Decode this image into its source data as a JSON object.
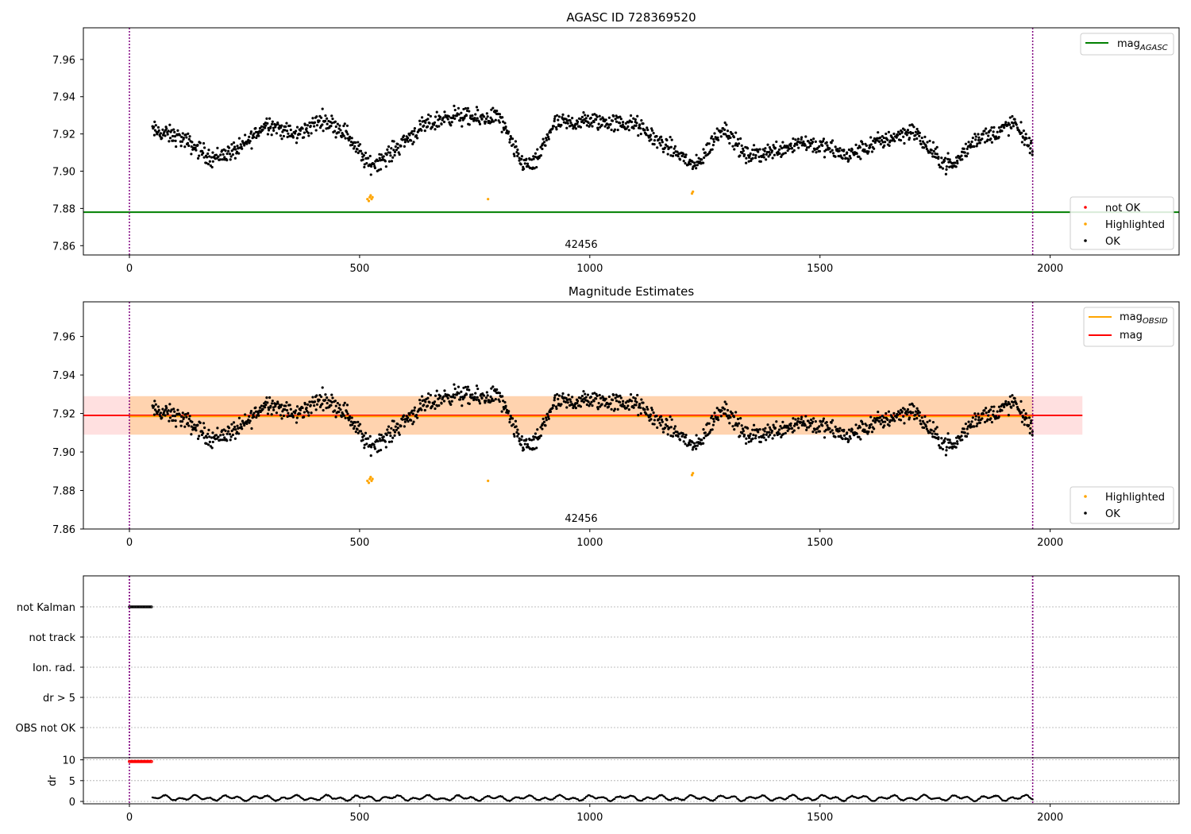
{
  "chart_data": [
    {
      "type": "scatter",
      "title": "AGASC ID 728369520",
      "xlim": [
        -100,
        2280
      ],
      "ylim": [
        7.855,
        7.977
      ],
      "xticks": [
        0,
        500,
        1000,
        1500,
        2000
      ],
      "yticks": [
        7.86,
        7.88,
        7.9,
        7.92,
        7.94,
        7.96
      ],
      "annotation": "42456",
      "vlines": [
        0,
        1962
      ],
      "hline": 7.878,
      "legend_lines": [
        {
          "label": "mag",
          "sub": "AGASC",
          "color": "#008000"
        }
      ],
      "legend_points": [
        {
          "label": "not OK",
          "color": "#ff0000"
        },
        {
          "label": "Highlighted",
          "color": "#ffa500"
        },
        {
          "label": "OK",
          "color": "#000000"
        }
      ],
      "series": [
        {
          "name": "OK",
          "color": "#000000",
          "x_start": 50,
          "x_end": 1962,
          "count": 1480,
          "baseline": [
            [
              50,
              7.922
            ],
            [
              110,
              7.918
            ],
            [
              180,
              7.907
            ],
            [
              240,
              7.912
            ],
            [
              300,
              7.926
            ],
            [
              360,
              7.919
            ],
            [
              420,
              7.928
            ],
            [
              470,
              7.921
            ],
            [
              520,
              7.903
            ],
            [
              560,
              7.908
            ],
            [
              600,
              7.917
            ],
            [
              640,
              7.924
            ],
            [
              700,
              7.93
            ],
            [
              760,
              7.928
            ],
            [
              800,
              7.93
            ],
            [
              850,
              7.905
            ],
            [
              880,
              7.903
            ],
            [
              920,
              7.925
            ],
            [
              1000,
              7.927
            ],
            [
              1100,
              7.925
            ],
            [
              1150,
              7.916
            ],
            [
              1200,
              7.908
            ],
            [
              1230,
              7.902
            ],
            [
              1290,
              7.924
            ],
            [
              1340,
              7.908
            ],
            [
              1400,
              7.911
            ],
            [
              1460,
              7.916
            ],
            [
              1520,
              7.912
            ],
            [
              1560,
              7.908
            ],
            [
              1620,
              7.915
            ],
            [
              1700,
              7.922
            ],
            [
              1760,
              7.906
            ],
            [
              1790,
              7.903
            ],
            [
              1840,
              7.918
            ],
            [
              1880,
              7.92
            ],
            [
              1920,
              7.926
            ],
            [
              1962,
              7.912
            ]
          ],
          "spread": 0.0045
        },
        {
          "name": "Highlighted",
          "color": "#ffa500",
          "points": [
            [
              517,
              7.885
            ],
            [
              520,
              7.884
            ],
            [
              522,
              7.886
            ],
            [
              524,
              7.887
            ],
            [
              526,
              7.885
            ],
            [
              528,
              7.886
            ],
            [
              779,
              7.885
            ],
            [
              1222,
              7.888
            ],
            [
              1224,
              7.889
            ]
          ]
        }
      ]
    },
    {
      "type": "scatter",
      "title": "Magnitude Estimates",
      "xlim": [
        -100,
        2280
      ],
      "ylim": [
        7.86,
        7.978
      ],
      "xticks": [
        0,
        500,
        1000,
        1500,
        2000
      ],
      "yticks": [
        7.86,
        7.88,
        7.9,
        7.92,
        7.94,
        7.96
      ],
      "annotation": "42456",
      "vlines": [
        0,
        1962
      ],
      "mag": 7.919,
      "mag_band": [
        7.909,
        7.929
      ],
      "mag_band_x": [
        -100,
        2070
      ],
      "obsid_mag": 7.9185,
      "obsid_band": [
        7.909,
        7.929
      ],
      "obsid_x": [
        0,
        1962
      ],
      "legend_lines": [
        {
          "label": "mag",
          "sub": "OBSID",
          "color": "#ffa500"
        },
        {
          "label": "mag",
          "sub": "",
          "color": "#ff0000"
        }
      ],
      "legend_points": [
        {
          "label": "Highlighted",
          "color": "#ffa500"
        },
        {
          "label": "OK",
          "color": "#000000"
        }
      ]
    },
    {
      "type": "scatter",
      "title": "",
      "xlim": [
        -100,
        2280
      ],
      "categories": [
        "not Kalman",
        "not track",
        "Ion. rad.",
        "dr > 5",
        "OBS not OK"
      ],
      "flag_points": {
        "category": "not Kalman",
        "x_start": 0,
        "x_end": 48,
        "color": "#000000"
      },
      "xticks": [
        0,
        500,
        1000,
        1500,
        2000
      ],
      "vlines": [
        0,
        1962
      ]
    },
    {
      "type": "scatter",
      "title": "",
      "ylabel": "dr",
      "xlim": [
        -100,
        2280
      ],
      "ylim": [
        0,
        10.5
      ],
      "yticks": [
        0,
        5,
        10
      ],
      "xticks": [
        0,
        500,
        1000,
        1500,
        2000
      ],
      "vlines": [
        0,
        1962
      ],
      "series": [
        {
          "name": "not OK",
          "color": "#ff0000",
          "x_start": 0,
          "x_end": 48,
          "value": 9.6
        },
        {
          "name": "OK",
          "color": "#000000",
          "x_start": 50,
          "x_end": 1962,
          "range": [
            0.0,
            2.0
          ]
        }
      ]
    }
  ]
}
